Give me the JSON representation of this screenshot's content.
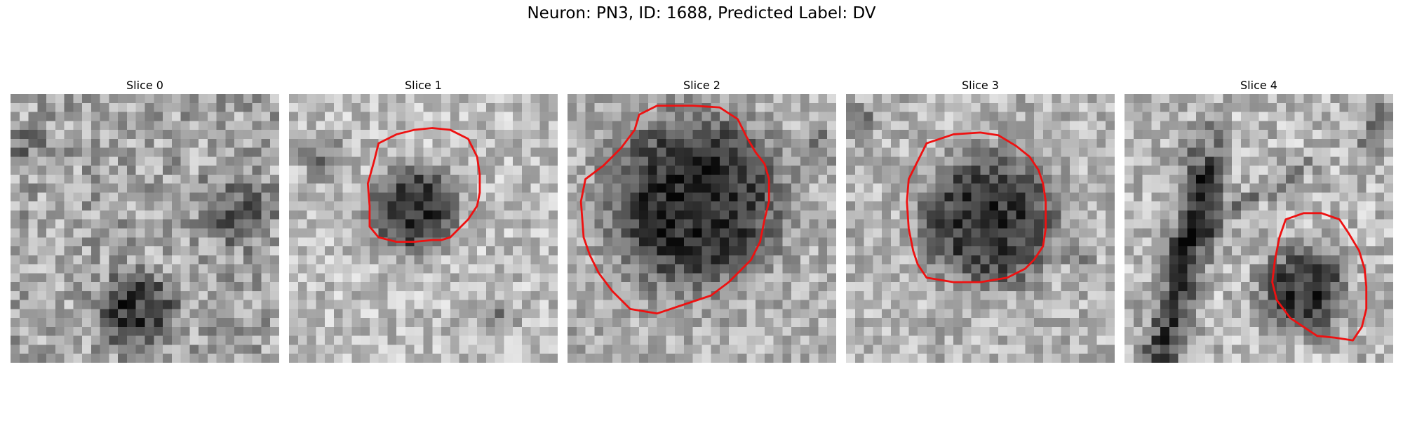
{
  "title": "Neuron: PN3, ID: 1688, Predicted Label: DV",
  "panels": [
    {
      "label": "Slice 0"
    },
    {
      "label": "Slice 1"
    },
    {
      "label": "Slice 2"
    },
    {
      "label": "Slice 3"
    },
    {
      "label": "Slice 4"
    }
  ],
  "colors": {
    "contour": "#ee1111",
    "background": "#ffffff"
  }
}
